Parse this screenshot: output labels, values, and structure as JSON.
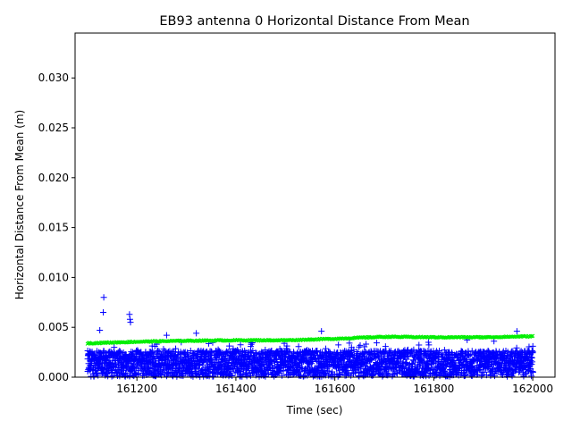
{
  "chart_data": {
    "type": "scatter",
    "title": "EB93 antenna 0 Horizontal Distance From Mean",
    "xlabel": "Time (sec)",
    "ylabel": "Horizontal Distance From Mean (m)",
    "xlim": [
      161075,
      162045
    ],
    "ylim": [
      0.0,
      0.0345
    ],
    "xticks": [
      161200,
      161400,
      161600,
      161800,
      162000
    ],
    "xtick_labels": [
      "161200",
      "161400",
      "161600",
      "161800",
      "162000"
    ],
    "yticks": [
      0.0,
      0.005,
      0.01,
      0.015,
      0.02,
      0.025,
      0.03
    ],
    "ytick_labels": [
      "0.000",
      "0.005",
      "0.010",
      "0.015",
      "0.020",
      "0.025",
      "0.030"
    ],
    "grid": false,
    "legend": "none",
    "x_range": [
      161100,
      162000
    ],
    "series": [
      {
        "marker": "plus",
        "color": "#0000ff",
        "notes": "dense noisy points mostly between 0 and 0.0035",
        "spikes": [
          {
            "x": 161133,
            "y": 0.008
          },
          {
            "x": 161132,
            "y": 0.0065
          },
          {
            "x": 161185,
            "y": 0.0063
          },
          {
            "x": 161186,
            "y": 0.0058
          },
          {
            "x": 161187,
            "y": 0.0055
          },
          {
            "x": 161573,
            "y": 0.0046
          },
          {
            "x": 161968,
            "y": 0.0046
          },
          {
            "x": 161125,
            "y": 0.0047
          },
          {
            "x": 161320,
            "y": 0.0044
          },
          {
            "x": 161260,
            "y": 0.0042
          }
        ]
      },
      {
        "marker": "x",
        "color": "#00ee00",
        "trend": [
          {
            "x": 161100,
            "y": 0.0034
          },
          {
            "x": 161200,
            "y": 0.00355
          },
          {
            "x": 161300,
            "y": 0.00365
          },
          {
            "x": 161400,
            "y": 0.0037
          },
          {
            "x": 161500,
            "y": 0.0037
          },
          {
            "x": 161600,
            "y": 0.00385
          },
          {
            "x": 161700,
            "y": 0.00405
          },
          {
            "x": 161800,
            "y": 0.004
          },
          {
            "x": 161900,
            "y": 0.004
          },
          {
            "x": 162000,
            "y": 0.0041
          }
        ]
      }
    ]
  }
}
